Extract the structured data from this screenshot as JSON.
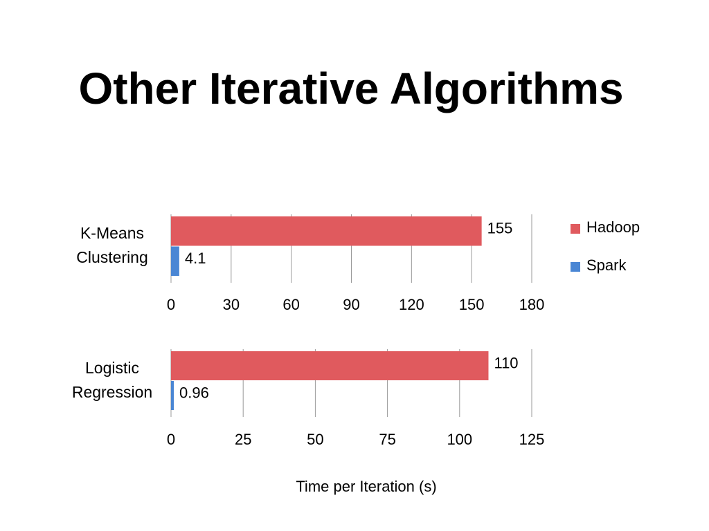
{
  "title": "Other Iterative Algorithms",
  "xlabel": "Time per Iteration (s)",
  "chart_data": [
    {
      "type": "bar",
      "orientation": "horizontal",
      "categories": [
        "K-Means Clustering"
      ],
      "series": [
        {
          "name": "Hadoop",
          "color": "#e05a5e",
          "values": [
            155
          ]
        },
        {
          "name": "Spark",
          "color": "#4a86d4",
          "values": [
            4.1
          ]
        }
      ],
      "xlim": [
        0,
        180
      ],
      "xticks": [
        0,
        30,
        60,
        90,
        120,
        150,
        180
      ],
      "grid": true,
      "legend": "right"
    },
    {
      "type": "bar",
      "orientation": "horizontal",
      "categories": [
        "Logistic Regression"
      ],
      "series": [
        {
          "color": "#e05a5e",
          "values": [
            110
          ]
        },
        {
          "color": "#4a86d4",
          "values": [
            0.96
          ]
        }
      ],
      "xlim": [
        0,
        125
      ],
      "xticks": [
        0,
        25,
        50,
        75,
        100,
        125
      ],
      "grid": true
    }
  ]
}
